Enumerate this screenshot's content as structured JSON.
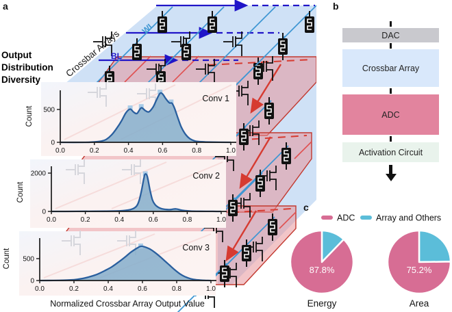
{
  "figure": {
    "panel_a": {
      "label": "a",
      "caption": "Output Distribution Diversity",
      "plane_label": "Crossbar Arrays",
      "wl": "WL",
      "bl": "BL"
    },
    "panel_b": {
      "label": "b",
      "boxes": [
        {
          "label": "DAC",
          "color": "#c9c9ce"
        },
        {
          "label": "Crossbar Array",
          "color": "#d9e8fb"
        },
        {
          "label": "ADC",
          "color": "#e2849e"
        },
        {
          "label": "Activation Circuit",
          "color": "#e9f3ec"
        }
      ]
    },
    "panel_c": {
      "label": "c"
    }
  },
  "shared": {
    "hist_xlabel": "Normalized Crossbar Array Output Value",
    "hist_ylabel": "Count",
    "legend": [
      {
        "label": "ADC",
        "color": "#d76d94"
      },
      {
        "label": "Array and Others",
        "color": "#5bbdd9"
      }
    ],
    "colors": {
      "curve": "#2a5f9e",
      "fill": "#85aecb",
      "marker": "#a9cbe7",
      "wordline": "#2015c8",
      "bitline_diag": "#3f97d3",
      "red_accent": "#d63b31",
      "blue_plane": "#cfe1f6",
      "red_plane": "#e78f96"
    }
  },
  "chart_data": [
    {
      "type": "area",
      "id": "conv1",
      "title": "Conv 1",
      "ylabel": "Count",
      "xlim": [
        0,
        1
      ],
      "x_ticks": [
        "0.0",
        "0.2",
        "0.4",
        "0.6",
        "0.8",
        "1.0"
      ],
      "y_ticks": [
        {
          "value": 0,
          "label": "0"
        },
        {
          "value": 500,
          "label": "500"
        }
      ],
      "points": [
        [
          0,
          0
        ],
        [
          0.15,
          0
        ],
        [
          0.2,
          6
        ],
        [
          0.24,
          18
        ],
        [
          0.27,
          45
        ],
        [
          0.3,
          110
        ],
        [
          0.33,
          210
        ],
        [
          0.36,
          330
        ],
        [
          0.385,
          450
        ],
        [
          0.41,
          505
        ],
        [
          0.43,
          460
        ],
        [
          0.45,
          440
        ],
        [
          0.475,
          525
        ],
        [
          0.5,
          480
        ],
        [
          0.52,
          465
        ],
        [
          0.545,
          540
        ],
        [
          0.565,
          650
        ],
        [
          0.585,
          745
        ],
        [
          0.6,
          735
        ],
        [
          0.62,
          660
        ],
        [
          0.64,
          600
        ],
        [
          0.655,
          595
        ],
        [
          0.67,
          520
        ],
        [
          0.69,
          370
        ],
        [
          0.71,
          230
        ],
        [
          0.735,
          120
        ],
        [
          0.76,
          55
        ],
        [
          0.79,
          20
        ],
        [
          0.83,
          8
        ],
        [
          0.88,
          3
        ],
        [
          1,
          0
        ]
      ],
      "markers": [
        [
          0.41,
          525
        ],
        [
          0.475,
          545
        ],
        [
          0.585,
          765
        ],
        [
          0.65,
          615
        ]
      ]
    },
    {
      "type": "area",
      "id": "conv2",
      "title": "Conv 2",
      "ylabel": "Count",
      "xlim": [
        0,
        1
      ],
      "x_ticks": [
        "0.0",
        "0.2",
        "0.4",
        "0.6",
        "0.8",
        "1.0"
      ],
      "y_ticks": [
        {
          "value": 0,
          "label": "0"
        },
        {
          "value": 2000,
          "label": "2000"
        }
      ],
      "points": [
        [
          0,
          0
        ],
        [
          0.15,
          3
        ],
        [
          0.25,
          8
        ],
        [
          0.32,
          12
        ],
        [
          0.38,
          22
        ],
        [
          0.42,
          40
        ],
        [
          0.45,
          70
        ],
        [
          0.475,
          120
        ],
        [
          0.5,
          260
        ],
        [
          0.515,
          520
        ],
        [
          0.53,
          1050
        ],
        [
          0.545,
          1750
        ],
        [
          0.553,
          1950
        ],
        [
          0.565,
          1820
        ],
        [
          0.58,
          1150
        ],
        [
          0.595,
          600
        ],
        [
          0.61,
          360
        ],
        [
          0.63,
          215
        ],
        [
          0.65,
          140
        ],
        [
          0.68,
          100
        ],
        [
          0.7,
          95
        ],
        [
          0.72,
          125
        ],
        [
          0.735,
          130
        ],
        [
          0.755,
          90
        ],
        [
          0.78,
          45
        ],
        [
          0.82,
          18
        ],
        [
          0.87,
          8
        ],
        [
          0.95,
          3
        ],
        [
          1,
          0
        ]
      ],
      "markers": [
        [
          0.553,
          1965
        ]
      ]
    },
    {
      "type": "area",
      "id": "conv3",
      "title": "Conv 3",
      "ylabel": "Count",
      "xlim": [
        0,
        1
      ],
      "x_ticks": [
        "0.0",
        "0.2",
        "0.4",
        "0.6",
        "0.8",
        "1.0"
      ],
      "y_ticks": [
        {
          "value": 0,
          "label": "0"
        },
        {
          "value": 500,
          "label": "500"
        }
      ],
      "points": [
        [
          0,
          0
        ],
        [
          0.08,
          2
        ],
        [
          0.13,
          5
        ],
        [
          0.18,
          12
        ],
        [
          0.22,
          28
        ],
        [
          0.26,
          55
        ],
        [
          0.3,
          95
        ],
        [
          0.34,
          150
        ],
        [
          0.38,
          225
        ],
        [
          0.42,
          310
        ],
        [
          0.46,
          420
        ],
        [
          0.5,
          540
        ],
        [
          0.53,
          640
        ],
        [
          0.56,
          720
        ],
        [
          0.585,
          775
        ],
        [
          0.6,
          780
        ],
        [
          0.62,
          760
        ],
        [
          0.645,
          715
        ],
        [
          0.67,
          650
        ],
        [
          0.7,
          555
        ],
        [
          0.73,
          450
        ],
        [
          0.76,
          345
        ],
        [
          0.79,
          240
        ],
        [
          0.82,
          150
        ],
        [
          0.85,
          85
        ],
        [
          0.88,
          42
        ],
        [
          0.91,
          18
        ],
        [
          0.95,
          6
        ],
        [
          1,
          0
        ]
      ],
      "markers": [
        [
          0.59,
          790
        ]
      ]
    },
    {
      "type": "pie",
      "title": "Energy",
      "labels": [
        "ADC",
        "Array and Others"
      ],
      "values": [
        87.8,
        12.2
      ],
      "value_label": "87.8%",
      "colors": [
        "#d76d94",
        "#5bbdd9"
      ]
    },
    {
      "type": "pie",
      "title": "Area",
      "labels": [
        "ADC",
        "Array and Others"
      ],
      "values": [
        75.2,
        24.8
      ],
      "value_label": "75.2%",
      "colors": [
        "#d76d94",
        "#5bbdd9"
      ]
    }
  ]
}
